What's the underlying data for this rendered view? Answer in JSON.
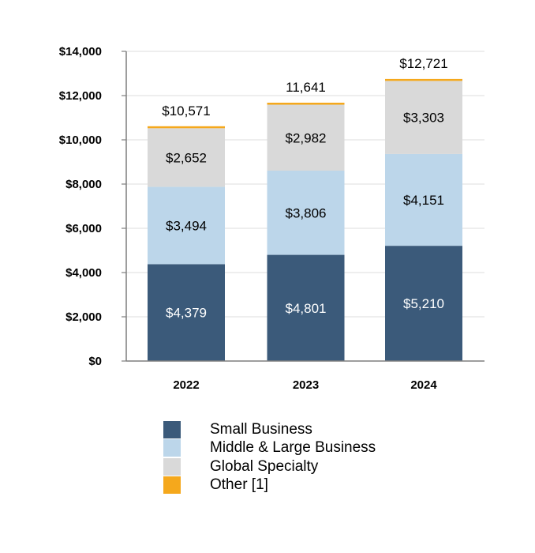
{
  "chart_data": {
    "type": "bar",
    "stacked": true,
    "categories": [
      "2022",
      "2023",
      "2024"
    ],
    "series": [
      {
        "name": "Small Business",
        "values": [
          4379,
          4801,
          5210
        ],
        "labels": [
          "$4,379",
          "$4,801",
          "$5,210"
        ],
        "color": "#3B5A7A"
      },
      {
        "name": "Middle & Large Business",
        "values": [
          3494,
          3806,
          4151
        ],
        "labels": [
          "$3,494",
          "$3,806",
          "$4,151"
        ],
        "color": "#BCD6EA"
      },
      {
        "name": "Global Specialty",
        "values": [
          2652,
          2982,
          3303
        ],
        "labels": [
          "$2,652",
          "$2,982",
          "$3,303"
        ],
        "color": "#D9D9D9"
      },
      {
        "name": "Other [1]",
        "values": [
          46,
          52,
          57
        ],
        "color": "#F5A81C"
      }
    ],
    "totals": [
      "$10,571",
      "11,641",
      "$12,721"
    ],
    "yticks": [
      "$0",
      "$2,000",
      "$4,000",
      "$6,000",
      "$8,000",
      "$10,000",
      "$12,000",
      "$14,000"
    ],
    "ylim": [
      0,
      14000
    ],
    "grid": true,
    "legend_position": "bottom",
    "title": "",
    "xlabel": "",
    "ylabel": ""
  }
}
